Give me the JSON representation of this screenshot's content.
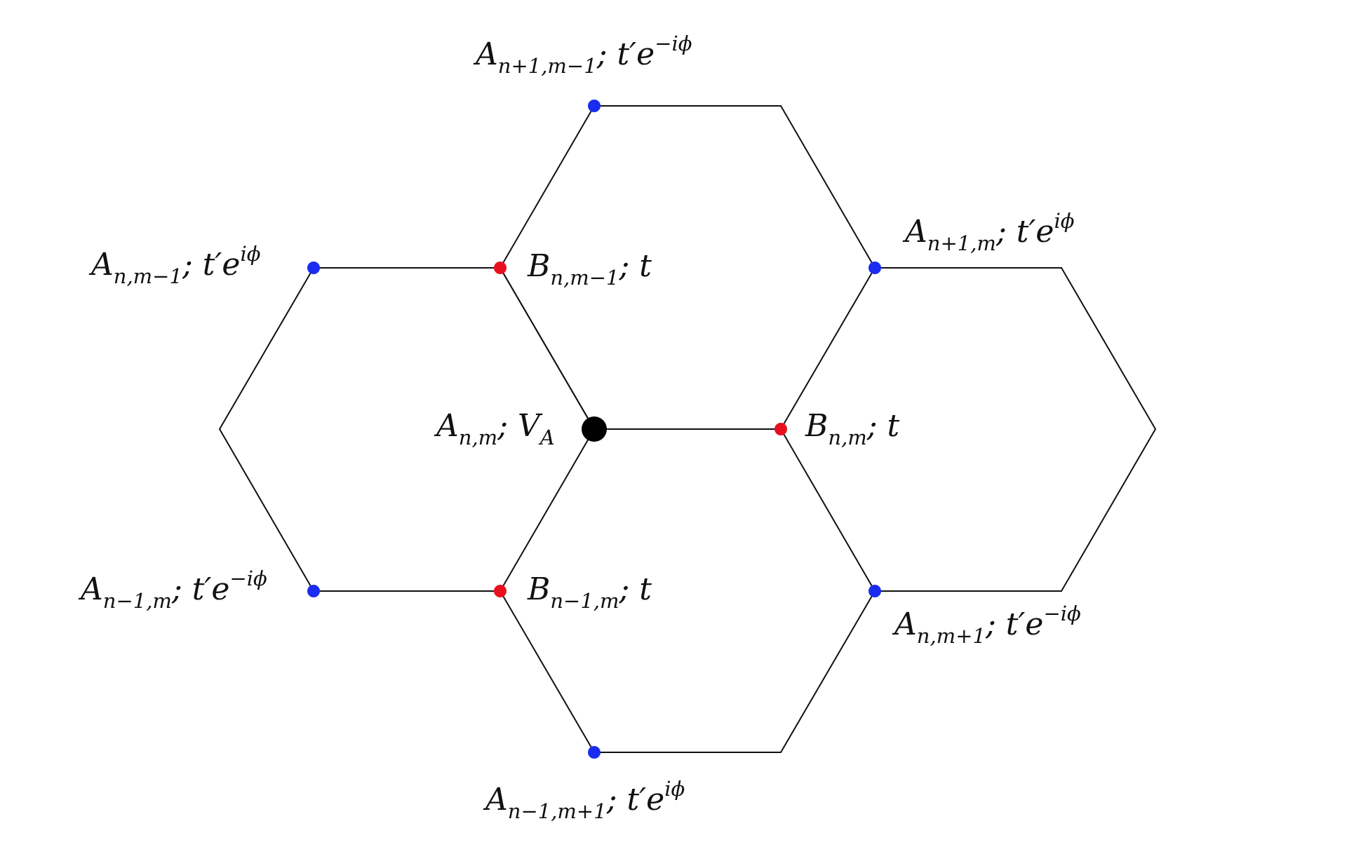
{
  "colors": {
    "a_site": "#1a2cf0",
    "b_site": "#e8101e",
    "center_site": "#000000",
    "edge": "#111111"
  },
  "labels": {
    "a_np1_mm1": {
      "base": "A",
      "sub": "n+1,m−1",
      "tail": "; t′e",
      "sup": "−iϕ"
    },
    "a_np1_m": {
      "base": "A",
      "sub": "n+1,m",
      "tail": "; t′e",
      "sup": "iϕ"
    },
    "a_n_mm1": {
      "base": "A",
      "sub": "n,m−1",
      "tail": "; t′e",
      "sup": "iϕ"
    },
    "b_n_mm1": {
      "base": "B",
      "sub": "n,m−1",
      "tail": "; t",
      "sup": ""
    },
    "a_n_m": {
      "base": "A",
      "sub": "n,m",
      "tail": "; V",
      "sup": "",
      "sub2": "A"
    },
    "b_n_m": {
      "base": "B",
      "sub": "n,m",
      "tail": "; t",
      "sup": ""
    },
    "a_nm1_m": {
      "base": "A",
      "sub": "n−1,m",
      "tail": "; t′e",
      "sup": "−iϕ"
    },
    "b_nm1_m": {
      "base": "B",
      "sub": "n−1,m",
      "tail": "; t",
      "sup": ""
    },
    "a_n_mp1": {
      "base": "A",
      "sub": "n,m+1",
      "tail": "; t′e",
      "sup": "−iϕ"
    },
    "a_nm1_mp1": {
      "base": "A",
      "sub": "n−1,m+1",
      "tail": "; t′e",
      "sup": "iϕ"
    }
  }
}
